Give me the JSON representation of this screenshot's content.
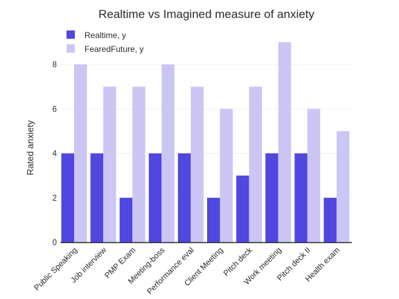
{
  "colors": {
    "realtime": "#5046e0",
    "feared_future": "#cbc6f4",
    "axis": "#2a2a2a",
    "grid": "#f0f0f0"
  },
  "chart_data": {
    "type": "bar",
    "title": "Realtime vs Imagined measure of anxiety",
    "xlabel": "",
    "ylabel": "Rated anxiety",
    "categories": [
      "Public Speaking",
      "Job interview",
      "PMP Exam",
      "Meeting-boss",
      "Performance eval",
      "Client Meeting",
      "Pitch deck",
      "Work meeting",
      "Pitch deck II",
      "Health exam"
    ],
    "series": [
      {
        "name": "Realtime, y",
        "values": [
          4,
          4,
          2,
          4,
          4,
          2,
          3,
          4,
          4,
          2
        ]
      },
      {
        "name": "FearedFuture, y",
        "values": [
          8,
          7,
          7,
          8,
          7,
          6,
          7,
          9,
          6,
          5
        ]
      }
    ],
    "ylim": [
      0,
      9
    ],
    "yticks": [
      0,
      2,
      4,
      6,
      8
    ],
    "grid": true,
    "legend": "top-left"
  }
}
